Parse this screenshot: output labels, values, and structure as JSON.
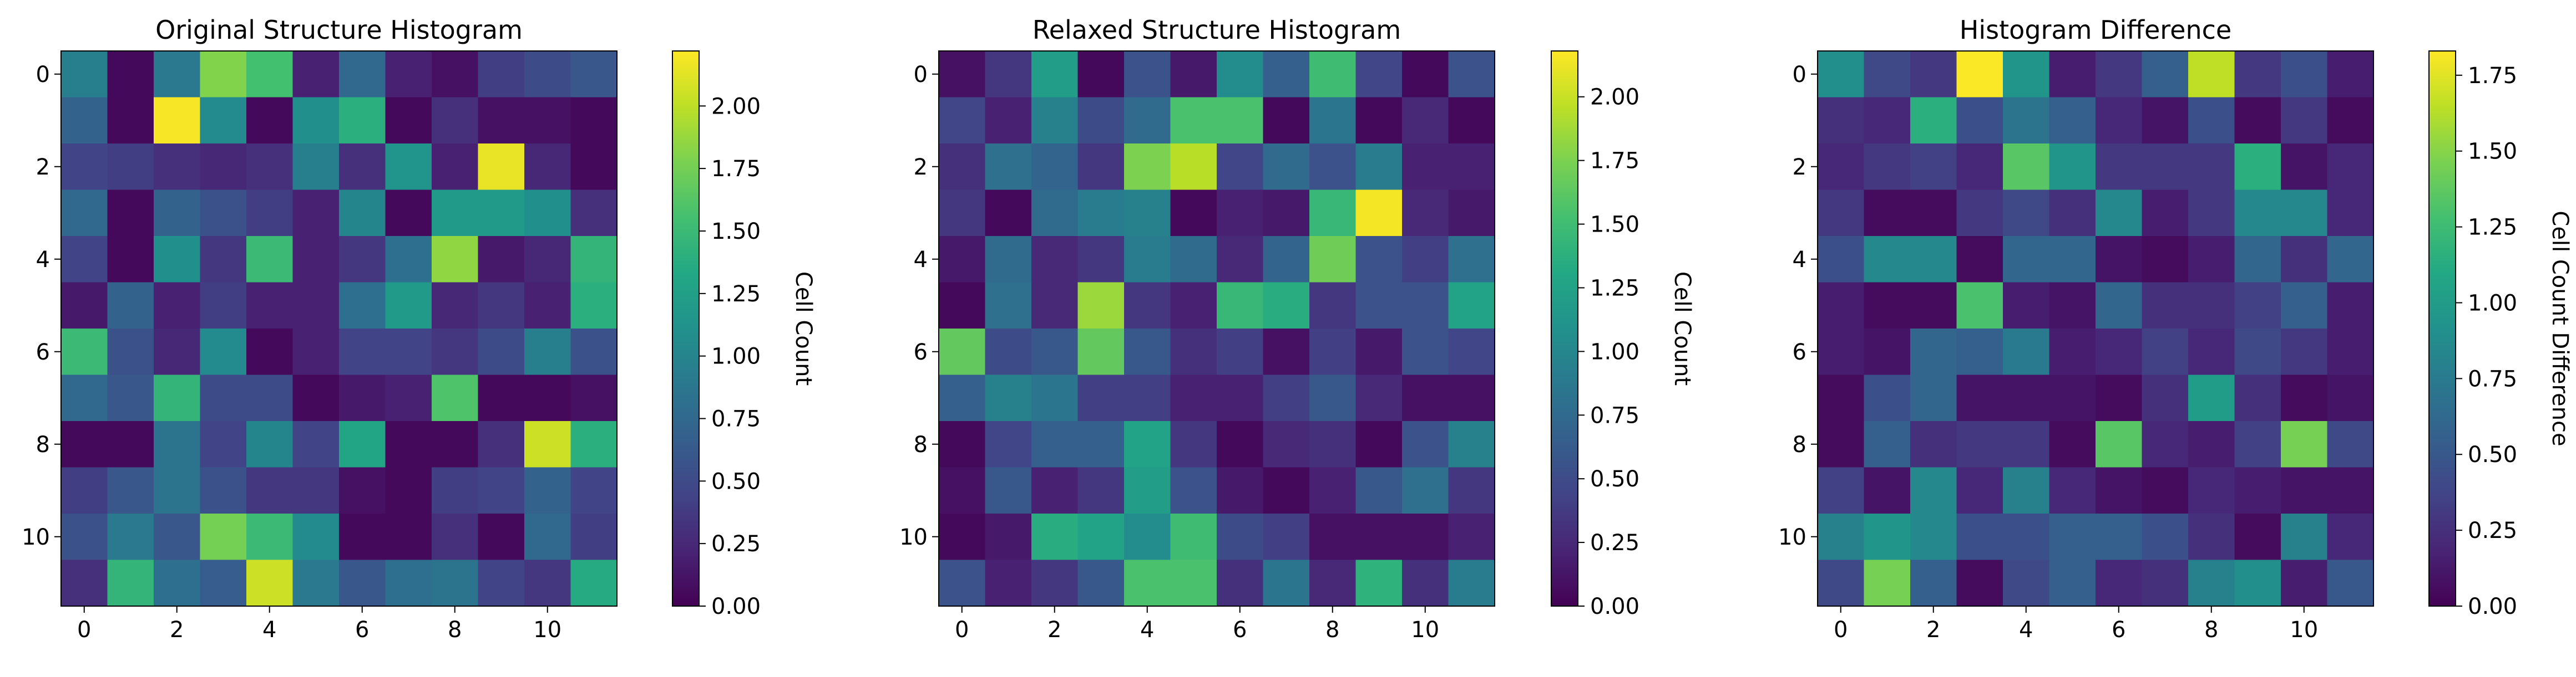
{
  "chart_data": [
    {
      "type": "heatmap",
      "title": "Original Structure Histogram",
      "colorbar_label": "Cell Count",
      "colormap": "viridis",
      "vmin": 0.0,
      "vmax": 2.22,
      "x_ticks": [
        "0",
        "2",
        "4",
        "6",
        "8",
        "10"
      ],
      "y_ticks": [
        "0",
        "2",
        "4",
        "6",
        "8",
        "10"
      ],
      "colorbar_ticks": [
        "0.00",
        "0.25",
        "0.50",
        "0.75",
        "1.00",
        "1.25",
        "1.50",
        "1.75",
        "2.00"
      ],
      "values": [
        [
          0.95,
          0.05,
          0.9,
          1.8,
          1.55,
          0.2,
          0.75,
          0.2,
          0.1,
          0.4,
          0.5,
          0.6
        ],
        [
          0.7,
          0.05,
          2.2,
          1.05,
          0.05,
          1.1,
          1.4,
          0.05,
          0.3,
          0.1,
          0.1,
          0.05
        ],
        [
          0.45,
          0.4,
          0.3,
          0.25,
          0.3,
          0.95,
          0.3,
          1.15,
          0.2,
          2.15,
          0.25,
          0.05
        ],
        [
          0.75,
          0.05,
          0.7,
          0.55,
          0.4,
          0.2,
          1.0,
          0.05,
          1.2,
          1.2,
          1.1,
          0.3
        ],
        [
          0.45,
          0.05,
          1.1,
          0.35,
          1.5,
          0.2,
          0.35,
          0.8,
          1.85,
          0.15,
          0.25,
          1.45
        ],
        [
          0.15,
          0.7,
          0.2,
          0.4,
          0.2,
          0.2,
          0.8,
          1.2,
          0.25,
          0.35,
          0.2,
          1.4
        ],
        [
          1.5,
          0.55,
          0.25,
          1.05,
          0.05,
          0.2,
          0.45,
          0.45,
          0.35,
          0.5,
          0.95,
          0.55
        ],
        [
          0.75,
          0.6,
          1.45,
          0.5,
          0.5,
          0.05,
          0.15,
          0.2,
          1.6,
          0.05,
          0.05,
          0.1
        ],
        [
          0.05,
          0.05,
          0.85,
          0.45,
          1.0,
          0.45,
          1.3,
          0.05,
          0.05,
          0.3,
          2.05,
          1.4
        ],
        [
          0.4,
          0.6,
          0.85,
          0.55,
          0.35,
          0.35,
          0.1,
          0.05,
          0.4,
          0.45,
          0.7,
          0.45
        ],
        [
          0.55,
          0.9,
          0.6,
          1.75,
          1.5,
          1.05,
          0.05,
          0.05,
          0.3,
          0.05,
          0.75,
          0.4
        ],
        [
          0.3,
          1.45,
          0.8,
          0.65,
          2.05,
          0.9,
          0.6,
          0.8,
          0.85,
          0.45,
          0.35,
          1.35
        ]
      ]
    },
    {
      "type": "heatmap",
      "title": "Relaxed Structure Histogram",
      "colorbar_label": "Cell Count",
      "colormap": "viridis",
      "vmin": 0.0,
      "vmax": 2.18,
      "x_ticks": [
        "0",
        "2",
        "4",
        "6",
        "8",
        "10"
      ],
      "y_ticks": [
        "0",
        "2",
        "4",
        "6",
        "8",
        "10"
      ],
      "colorbar_ticks": [
        "0.00",
        "0.25",
        "0.50",
        "0.75",
        "1.00",
        "1.25",
        "1.50",
        "1.75",
        "2.00"
      ],
      "values": [
        [
          0.1,
          0.35,
          1.2,
          0.05,
          0.55,
          0.15,
          1.05,
          0.65,
          1.5,
          0.45,
          0.05,
          0.55
        ],
        [
          0.45,
          0.2,
          0.95,
          0.5,
          0.75,
          1.55,
          1.55,
          0.05,
          0.85,
          0.05,
          0.25,
          0.05
        ],
        [
          0.3,
          0.8,
          0.7,
          0.35,
          1.75,
          1.95,
          0.45,
          0.75,
          0.55,
          0.9,
          0.2,
          0.2
        ],
        [
          0.35,
          0.05,
          0.75,
          0.9,
          0.95,
          0.05,
          0.2,
          0.15,
          1.45,
          2.15,
          0.25,
          0.15
        ],
        [
          0.15,
          0.75,
          0.25,
          0.35,
          0.9,
          0.75,
          0.25,
          0.7,
          1.7,
          0.55,
          0.4,
          0.8
        ],
        [
          0.05,
          0.8,
          0.25,
          1.85,
          0.35,
          0.2,
          1.45,
          1.35,
          0.35,
          0.55,
          0.55,
          1.25
        ],
        [
          1.65,
          0.5,
          0.6,
          1.65,
          0.6,
          0.3,
          0.4,
          0.1,
          0.4,
          0.15,
          0.55,
          0.45
        ],
        [
          0.65,
          0.95,
          0.85,
          0.4,
          0.4,
          0.2,
          0.2,
          0.4,
          0.6,
          0.25,
          0.1,
          0.1
        ],
        [
          0.05,
          0.45,
          0.65,
          0.65,
          1.25,
          0.35,
          0.05,
          0.25,
          0.3,
          0.05,
          0.55,
          0.95
        ],
        [
          0.1,
          0.6,
          0.2,
          0.35,
          1.2,
          0.55,
          0.15,
          0.05,
          0.2,
          0.6,
          0.8,
          0.35
        ],
        [
          0.05,
          0.15,
          1.35,
          1.25,
          1.05,
          1.5,
          0.5,
          0.4,
          0.1,
          0.1,
          0.1,
          0.2
        ],
        [
          0.55,
          0.2,
          0.35,
          0.6,
          1.55,
          1.55,
          0.3,
          0.85,
          0.25,
          1.4,
          0.3,
          0.9
        ]
      ]
    },
    {
      "type": "heatmap",
      "title": "Histogram Difference",
      "colorbar_label": "Cell Count Difference",
      "colormap": "viridis",
      "vmin": 0.0,
      "vmax": 1.83,
      "x_ticks": [
        "0",
        "2",
        "4",
        "6",
        "8",
        "10"
      ],
      "y_ticks": [
        "0",
        "2",
        "4",
        "6",
        "8",
        "10"
      ],
      "colorbar_ticks": [
        "0.00",
        "0.25",
        "0.50",
        "0.75",
        "1.00",
        "1.25",
        "1.50",
        "1.75"
      ],
      "values": [
        [
          0.9,
          0.4,
          0.3,
          1.82,
          0.95,
          0.15,
          0.3,
          0.55,
          1.65,
          0.3,
          0.45,
          0.15
        ],
        [
          0.25,
          0.2,
          1.15,
          0.45,
          0.7,
          0.55,
          0.2,
          0.1,
          0.45,
          0.05,
          0.3,
          0.05
        ],
        [
          0.2,
          0.3,
          0.35,
          0.2,
          1.35,
          0.95,
          0.3,
          0.3,
          0.3,
          1.15,
          0.1,
          0.2
        ],
        [
          0.3,
          0.05,
          0.05,
          0.3,
          0.4,
          0.25,
          0.85,
          0.15,
          0.3,
          0.85,
          0.85,
          0.2
        ],
        [
          0.45,
          0.85,
          0.85,
          0.05,
          0.6,
          0.6,
          0.1,
          0.05,
          0.15,
          0.6,
          0.25,
          0.6
        ],
        [
          0.15,
          0.05,
          0.05,
          1.3,
          0.15,
          0.1,
          0.6,
          0.25,
          0.25,
          0.35,
          0.55,
          0.15
        ],
        [
          0.15,
          0.1,
          0.6,
          0.55,
          0.75,
          0.15,
          0.2,
          0.35,
          0.2,
          0.4,
          0.3,
          0.15
        ],
        [
          0.05,
          0.45,
          0.6,
          0.1,
          0.1,
          0.1,
          0.05,
          0.25,
          1.0,
          0.25,
          0.05,
          0.1
        ],
        [
          0.05,
          0.55,
          0.25,
          0.3,
          0.3,
          0.05,
          1.35,
          0.2,
          0.15,
          0.35,
          1.45,
          0.4
        ],
        [
          0.35,
          0.1,
          0.85,
          0.2,
          0.8,
          0.2,
          0.1,
          0.05,
          0.2,
          0.15,
          0.1,
          0.1
        ],
        [
          0.8,
          0.95,
          0.85,
          0.45,
          0.45,
          0.55,
          0.55,
          0.45,
          0.25,
          0.05,
          0.8,
          0.2
        ],
        [
          0.4,
          1.45,
          0.55,
          0.05,
          0.4,
          0.55,
          0.2,
          0.25,
          0.8,
          0.9,
          0.15,
          0.5
        ]
      ]
    }
  ]
}
